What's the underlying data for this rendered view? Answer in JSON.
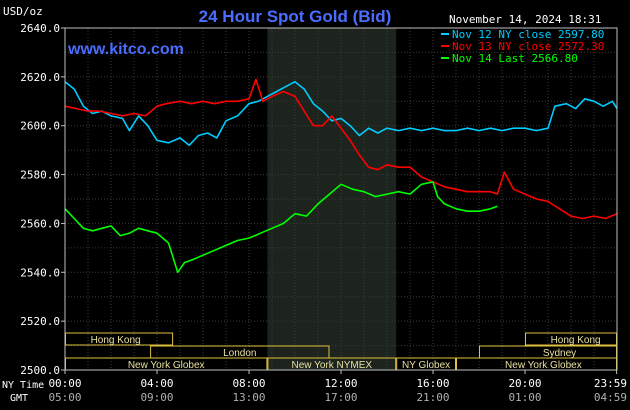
{
  "header": {
    "y_unit": "USD/oz",
    "title": "24 Hour Spot Gold (Bid)",
    "date": "November 14, 2024 18:31",
    "site": "www.kitco.com"
  },
  "footer": {
    "ny_time_label": "NY Time",
    "gmt_label": "GMT"
  },
  "chart_data": {
    "type": "line",
    "title": "24 Hour Spot Gold (Bid)",
    "ylabel": "USD/oz",
    "ylim": [
      2500,
      2640
    ],
    "yticks": [
      2500,
      2520,
      2540,
      2560,
      2580,
      2600,
      2620,
      2640
    ],
    "ytick_labels": [
      "2500.0",
      "2520.0",
      "2540.0",
      "2560.0",
      "2580.0",
      "2600.0",
      "2620.0",
      "2640.0"
    ],
    "xlim": [
      0,
      24
    ],
    "xticks": [
      0,
      4,
      8,
      12,
      16,
      20,
      23.983
    ],
    "xtick_labels": [
      "00:00",
      "04:00",
      "08:00",
      "12:00",
      "16:00",
      "20:00",
      "23:59"
    ],
    "xtick_labels_gmt": [
      "05:00",
      "09:00",
      "13:00",
      "17:00",
      "21:00",
      "01:00",
      "04:59"
    ],
    "grid": true,
    "legend": "top-right",
    "highlight_band": [
      8.8,
      14.4
    ],
    "series": [
      {
        "name": "Nov 12 NY close 2597.80",
        "color": "#00ccff",
        "points": [
          [
            0,
            2618
          ],
          [
            0.4,
            2615
          ],
          [
            0.8,
            2608
          ],
          [
            1.2,
            2605
          ],
          [
            1.6,
            2606
          ],
          [
            2,
            2604
          ],
          [
            2.5,
            2603
          ],
          [
            2.8,
            2598
          ],
          [
            3.2,
            2604
          ],
          [
            3.6,
            2600
          ],
          [
            4,
            2594
          ],
          [
            4.5,
            2593
          ],
          [
            5,
            2595
          ],
          [
            5.4,
            2592
          ],
          [
            5.8,
            2596
          ],
          [
            6.2,
            2597
          ],
          [
            6.6,
            2595
          ],
          [
            7.0,
            2602
          ],
          [
            7.5,
            2604
          ],
          [
            8.0,
            2609
          ],
          [
            8.4,
            2610
          ],
          [
            8.8,
            2612
          ],
          [
            9.2,
            2614
          ],
          [
            9.6,
            2616
          ],
          [
            10.0,
            2618
          ],
          [
            10.4,
            2615
          ],
          [
            10.8,
            2609
          ],
          [
            11.2,
            2606
          ],
          [
            11.6,
            2602
          ],
          [
            12.0,
            2603
          ],
          [
            12.4,
            2600
          ],
          [
            12.8,
            2596
          ],
          [
            13.2,
            2599
          ],
          [
            13.6,
            2597
          ],
          [
            14.0,
            2599
          ],
          [
            14.5,
            2598
          ],
          [
            15.0,
            2599
          ],
          [
            15.5,
            2598
          ],
          [
            16.0,
            2599
          ],
          [
            16.5,
            2598
          ],
          [
            17.0,
            2598
          ],
          [
            17.5,
            2599
          ],
          [
            18.0,
            2598
          ],
          [
            18.5,
            2599
          ],
          [
            19.0,
            2598
          ],
          [
            19.5,
            2599
          ],
          [
            20.0,
            2599
          ],
          [
            20.5,
            2598
          ],
          [
            21.0,
            2599
          ],
          [
            21.3,
            2608
          ],
          [
            21.8,
            2609
          ],
          [
            22.2,
            2607
          ],
          [
            22.6,
            2611
          ],
          [
            23.0,
            2610
          ],
          [
            23.4,
            2608
          ],
          [
            23.8,
            2610
          ],
          [
            24.0,
            2607
          ]
        ]
      },
      {
        "name": "Nov 13 NY close 2572.30",
        "color": "#ff0000",
        "points": [
          [
            0,
            2608
          ],
          [
            0.5,
            2607
          ],
          [
            1,
            2606
          ],
          [
            1.5,
            2606
          ],
          [
            2,
            2605
          ],
          [
            2.5,
            2604
          ],
          [
            3,
            2605
          ],
          [
            3.5,
            2604
          ],
          [
            4,
            2608
          ],
          [
            4.4,
            2609
          ],
          [
            5,
            2610
          ],
          [
            5.5,
            2609
          ],
          [
            6,
            2610
          ],
          [
            6.5,
            2609
          ],
          [
            7,
            2610
          ],
          [
            7.5,
            2610
          ],
          [
            8,
            2611
          ],
          [
            8.3,
            2619
          ],
          [
            8.6,
            2610
          ],
          [
            9,
            2612
          ],
          [
            9.5,
            2614
          ],
          [
            10,
            2612
          ],
          [
            10.4,
            2606
          ],
          [
            10.8,
            2600
          ],
          [
            11.2,
            2600
          ],
          [
            11.6,
            2604
          ],
          [
            12,
            2599
          ],
          [
            12.4,
            2594
          ],
          [
            12.8,
            2588
          ],
          [
            13.2,
            2583
          ],
          [
            13.6,
            2582
          ],
          [
            14.0,
            2584
          ],
          [
            14.5,
            2583
          ],
          [
            15.0,
            2583
          ],
          [
            15.5,
            2579
          ],
          [
            16.0,
            2577
          ],
          [
            16.5,
            2575
          ],
          [
            17.0,
            2574
          ],
          [
            17.5,
            2573
          ],
          [
            18.0,
            2573
          ],
          [
            18.5,
            2573
          ],
          [
            18.8,
            2572
          ],
          [
            19.1,
            2581
          ],
          [
            19.5,
            2574
          ],
          [
            20.0,
            2572
          ],
          [
            20.5,
            2570
          ],
          [
            21.0,
            2569
          ],
          [
            21.5,
            2566
          ],
          [
            22.0,
            2563
          ],
          [
            22.5,
            2562
          ],
          [
            23.0,
            2563
          ],
          [
            23.5,
            2562
          ],
          [
            24.0,
            2564
          ]
        ]
      },
      {
        "name": "Nov 14 Last 2566.80",
        "color": "#00ff00",
        "points": [
          [
            0,
            2566
          ],
          [
            0.4,
            2562
          ],
          [
            0.8,
            2558
          ],
          [
            1.2,
            2557
          ],
          [
            1.6,
            2558
          ],
          [
            2,
            2559
          ],
          [
            2.4,
            2555
          ],
          [
            2.8,
            2556
          ],
          [
            3.2,
            2558
          ],
          [
            3.6,
            2557
          ],
          [
            4,
            2556
          ],
          [
            4.5,
            2552
          ],
          [
            4.9,
            2540
          ],
          [
            5.2,
            2544
          ],
          [
            5.5,
            2545
          ],
          [
            6,
            2547
          ],
          [
            6.5,
            2549
          ],
          [
            7,
            2551
          ],
          [
            7.5,
            2553
          ],
          [
            8,
            2554
          ],
          [
            8.5,
            2556
          ],
          [
            9,
            2558
          ],
          [
            9.5,
            2560
          ],
          [
            10,
            2564
          ],
          [
            10.5,
            2563
          ],
          [
            11,
            2568
          ],
          [
            11.5,
            2572
          ],
          [
            12,
            2576
          ],
          [
            12.5,
            2574
          ],
          [
            13,
            2573
          ],
          [
            13.5,
            2571
          ],
          [
            14,
            2572
          ],
          [
            14.5,
            2573
          ],
          [
            15,
            2572
          ],
          [
            15.5,
            2576
          ],
          [
            16,
            2577
          ],
          [
            16.2,
            2571
          ],
          [
            16.5,
            2568
          ],
          [
            17,
            2566
          ],
          [
            17.5,
            2565
          ],
          [
            18,
            2565
          ],
          [
            18.5,
            2566
          ],
          [
            18.8,
            2567
          ]
        ]
      }
    ]
  },
  "sessions": [
    {
      "name": "Hong Kong",
      "row": 0,
      "start": 0,
      "end": 4.7,
      "label_at": 2.2
    },
    {
      "name": "London",
      "row": 1,
      "start": 3.7,
      "end": 11.5,
      "label_at": 7.6
    },
    {
      "name": "New York Globex",
      "row": 2,
      "start": 0,
      "end": 8.8,
      "label_at": 4.4
    },
    {
      "name": "New York NYMEX",
      "row": 2,
      "start": 8.8,
      "end": 14.4,
      "label_at": 11.6
    },
    {
      "name": "NY Globex",
      "row": 2,
      "start": 14.4,
      "end": 17.0,
      "label_at": 15.7
    },
    {
      "name": "Hong Kong",
      "row": 0,
      "start": 20.0,
      "end": 24.0,
      "label_at": 22.2
    },
    {
      "name": "Sydney",
      "row": 1,
      "start": 18.0,
      "end": 24.0,
      "label_at": 21.5
    },
    {
      "name": "New York Globex",
      "row": 2,
      "start": 17.0,
      "end": 24.0,
      "label_at": 20.8
    }
  ]
}
